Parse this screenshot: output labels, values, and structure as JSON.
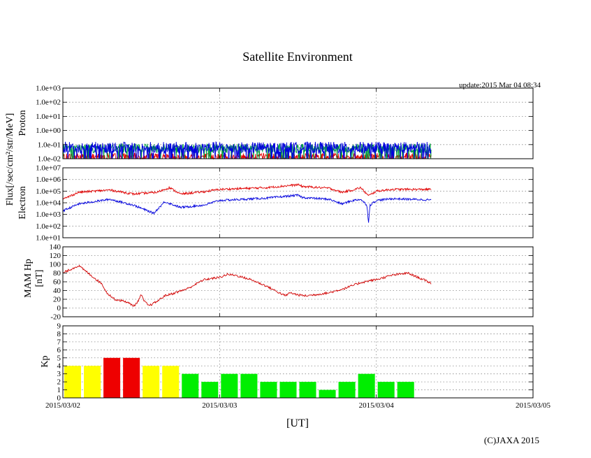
{
  "chart_data": {
    "type": "line",
    "title": "Satellite Environment",
    "update": "update:2015 Mar 04 08:34",
    "copyright": "(C)JAXA 2015",
    "xlabel": "[UT]",
    "x_ticks": [
      "2015/03/02",
      "2015/03/03",
      "2015/03/04",
      "2015/03/05"
    ],
    "x_unit": "days since 2015/03/02 00:00 UT",
    "x_range": [
      0,
      3
    ],
    "data_end_day": 2.35,
    "flux_ylabel": "Flux[/sec/cm²/str/MeV]",
    "panels": [
      {
        "id": "proton",
        "type": "line",
        "ylabel": "Proton",
        "yscale": "log",
        "ylim_exp": [
          -2,
          3
        ],
        "ytick_labels": [
          "1.0e+03",
          "1.0e+02",
          "1.0e+01",
          "1.0e+00",
          "1.0e-01",
          "1.0e-02"
        ],
        "series": [
          {
            "name": "red",
            "color": "#e00000",
            "level": 0.014,
            "noise_decades": 0.25
          },
          {
            "name": "green",
            "color": "#00a040",
            "level": 0.055,
            "noise_decades": 0.32
          },
          {
            "name": "blue",
            "color": "#0000dd",
            "level": 0.06,
            "noise_decades": 0.42
          }
        ]
      },
      {
        "id": "electron",
        "type": "line",
        "ylabel": "Electron",
        "yscale": "log",
        "ylim_exp": [
          1,
          7
        ],
        "ytick_labels": [
          "1.0e+07",
          "1.0e+06",
          "1.0e+05",
          "1.0e+04",
          "1.0e+03",
          "1.0e+02",
          "1.0e+01"
        ],
        "series": [
          {
            "name": "red",
            "color": "#e00000",
            "x": [
              0,
              0.1,
              0.3,
              0.45,
              0.6,
              0.68,
              0.75,
              0.9,
              1.0,
              1.3,
              1.5,
              1.53,
              1.7,
              1.78,
              1.85,
              1.9,
              1.95,
              2.0,
              2.1,
              2.35
            ],
            "log10": [
              4.3,
              4.9,
              5.1,
              4.75,
              4.9,
              5.3,
              4.75,
              4.95,
              5.15,
              5.3,
              5.55,
              5.4,
              5.25,
              4.9,
              5.1,
              5.3,
              4.6,
              5.0,
              5.15,
              5.15
            ]
          },
          {
            "name": "blue",
            "color": "#0000dd",
            "x": [
              0,
              0.1,
              0.3,
              0.45,
              0.58,
              0.65,
              0.75,
              0.9,
              1.0,
              1.3,
              1.5,
              1.53,
              1.7,
              1.78,
              1.85,
              1.9,
              1.94,
              1.95,
              1.96,
              2.0,
              2.1,
              2.35
            ],
            "log10": [
              3.3,
              3.9,
              4.3,
              3.8,
              3.1,
              4.1,
              3.6,
              3.8,
              4.2,
              4.4,
              4.65,
              4.45,
              4.3,
              3.9,
              4.2,
              4.3,
              3.8,
              2.3,
              3.8,
              4.2,
              4.35,
              4.25
            ]
          }
        ]
      },
      {
        "id": "mam_hp",
        "type": "line",
        "ylabel": "MAM Hp",
        "ylabel2": "[nT]",
        "yscale": "linear",
        "ylim": [
          -20,
          140
        ],
        "ytick_values": [
          140,
          120,
          100,
          80,
          60,
          40,
          20,
          0,
          -20
        ],
        "series": [
          {
            "name": "Hp",
            "color": "#d00000",
            "x": [
              0,
              0.1,
              0.25,
              0.28,
              0.33,
              0.4,
              0.45,
              0.47,
              0.5,
              0.52,
              0.55,
              0.6,
              0.65,
              0.7,
              0.8,
              0.9,
              1.0,
              1.05,
              1.1,
              1.2,
              1.3,
              1.38,
              1.42,
              1.45,
              1.5,
              1.55,
              1.6,
              1.7,
              1.8,
              1.9,
              1.95,
              2.0,
              2.05,
              2.1,
              2.2,
              2.3,
              2.35
            ],
            "y": [
              80,
              97,
              55,
              35,
              20,
              15,
              5,
              10,
              30,
              15,
              5,
              15,
              28,
              33,
              45,
              65,
              70,
              77,
              75,
              65,
              50,
              35,
              28,
              35,
              30,
              28,
              30,
              35,
              45,
              58,
              62,
              65,
              70,
              75,
              80,
              65,
              57
            ]
          }
        ]
      },
      {
        "id": "kp",
        "type": "bar",
        "ylabel": "Kp",
        "yscale": "linear",
        "ylim": [
          0,
          9
        ],
        "ytick_values": [
          9,
          8,
          7,
          6,
          5,
          4,
          3,
          2,
          1,
          0
        ],
        "bar_width_days": 0.125,
        "values": [
          4,
          4,
          5,
          5,
          4,
          4,
          3,
          2,
          3,
          3,
          2,
          2,
          2,
          1,
          2,
          3,
          2,
          2
        ],
        "color_rule": {
          "green": "#00ee00",
          "yellow": "#ffff00",
          "red": "#ee0000"
        }
      }
    ]
  }
}
